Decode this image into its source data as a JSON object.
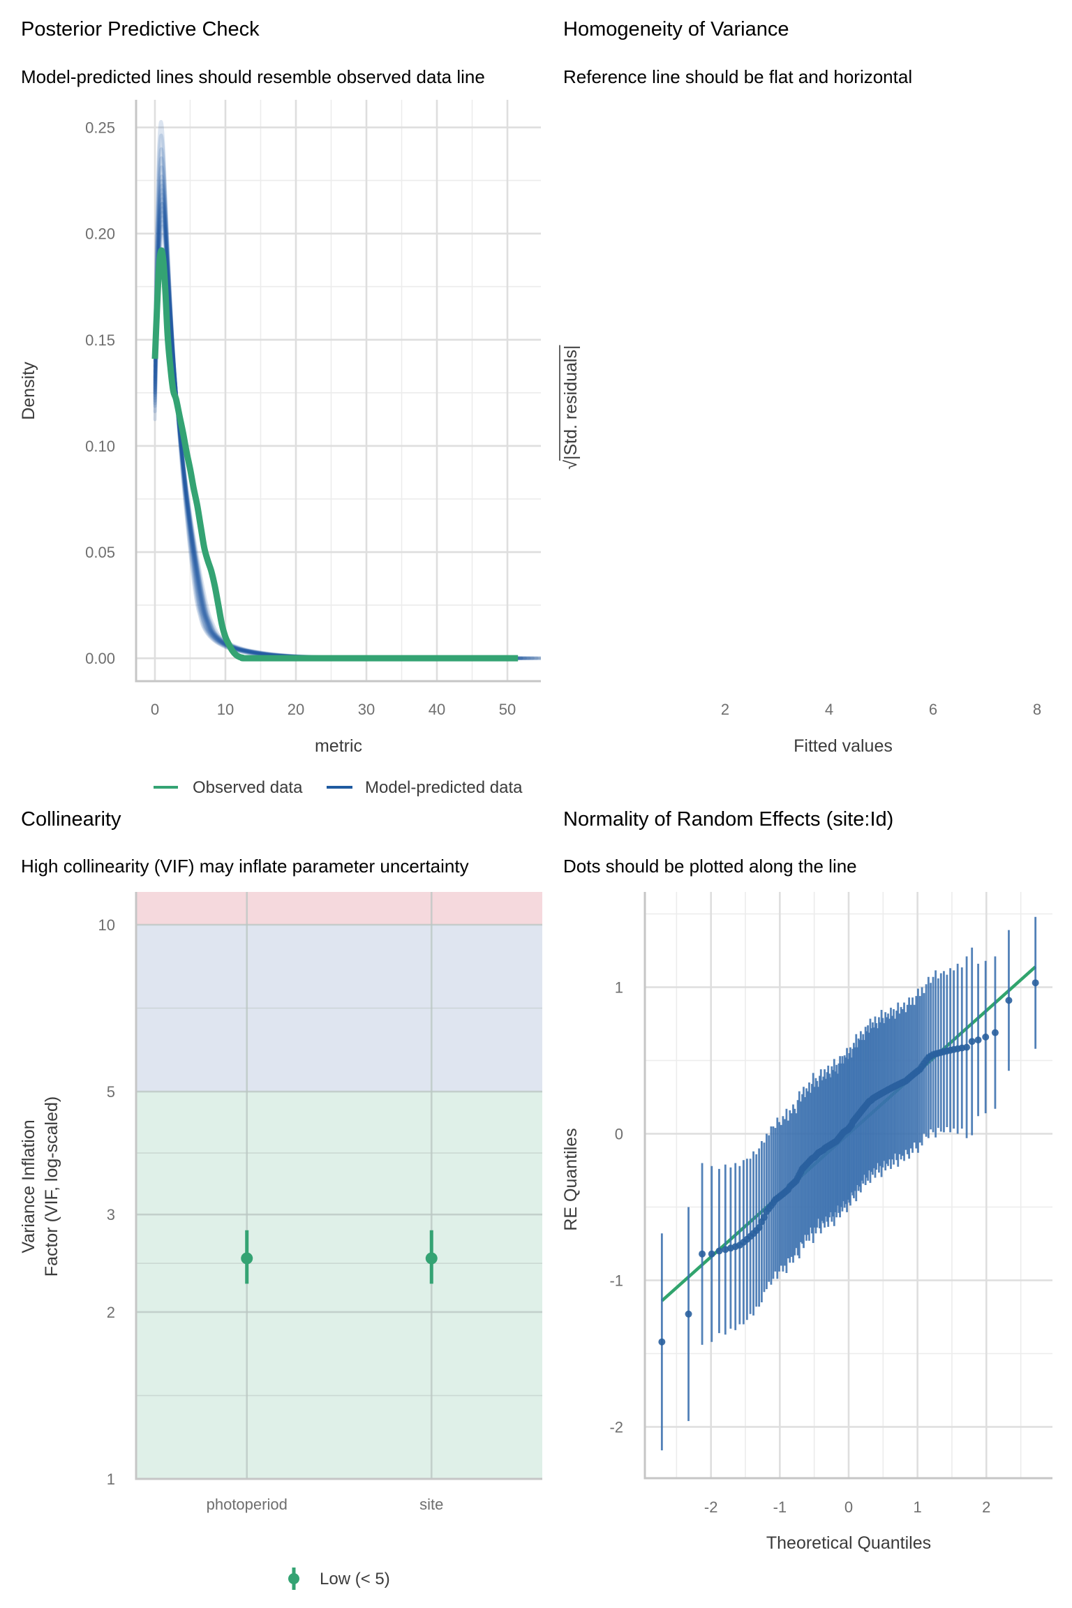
{
  "colors": {
    "observed": "#34a373",
    "predicted": "#1f5aa0",
    "qq_point": "#2a609f",
    "qq_bar": "#3a6fae",
    "reference_line": "#31a46d",
    "vif_low": "#34a373",
    "band_low": "#dff0e8",
    "band_moderate": "#dfe5f0",
    "band_high": "#f5d9dd"
  },
  "chart_data": [
    {
      "type": "line",
      "title": "Posterior Predictive Check",
      "subtitle": "Model-predicted lines should resemble observed data line",
      "xlabel": "metric",
      "ylabel": "Density",
      "xlim": [
        -2.67,
        54.75
      ],
      "ylim": [
        -0.0108,
        0.263
      ],
      "x_ticks": [
        0,
        10,
        20,
        30,
        40,
        50
      ],
      "x_tick_labels": [
        "0",
        "10",
        "20",
        "30",
        "40",
        "50"
      ],
      "x_minor_ticks": [
        5,
        15,
        25,
        35,
        45
      ],
      "y_ticks": [
        0,
        0.05,
        0.1,
        0.15,
        0.2,
        0.25
      ],
      "y_tick_labels": [
        "0.00",
        "0.05",
        "0.10",
        "0.15",
        "0.20",
        "0.25"
      ],
      "y_minor_ticks": [
        0.025,
        0.075,
        0.125,
        0.175,
        0.225
      ],
      "grid": true,
      "legend_position": "bottom",
      "series": [
        {
          "name": "Observed data",
          "x": [
            0,
            0.3,
            0.6,
            0.9,
            1.2,
            1.5,
            1.8,
            2.2,
            2.6,
            3.0,
            3.5,
            4.0,
            4.5,
            5.0,
            5.5,
            6.0,
            6.5,
            7.0,
            7.5,
            8.0,
            8.5,
            9.0,
            9.5,
            10.0,
            10.5,
            11.0,
            11.5,
            12.0,
            12.5,
            13.0,
            20,
            30,
            40,
            51.5
          ],
          "y": [
            0.141,
            0.165,
            0.185,
            0.192,
            0.187,
            0.172,
            0.152,
            0.137,
            0.126,
            0.122,
            0.114,
            0.106,
            0.097,
            0.089,
            0.08,
            0.072,
            0.062,
            0.052,
            0.046,
            0.041,
            0.034,
            0.025,
            0.016,
            0.01,
            0.0065,
            0.0035,
            0.0016,
            0.0006,
            0.0002,
            0.0,
            0.0,
            0.0,
            0.0,
            0.0
          ]
        },
        {
          "name": "Model-predicted data",
          "x": [
            0,
            0.3,
            0.6,
            0.9,
            1.2,
            1.5,
            1.8,
            2.2,
            2.6,
            3.0,
            3.5,
            4.0,
            4.5,
            5.0,
            5.5,
            6.0,
            6.5,
            7.0,
            7.5,
            8.0,
            8.7,
            9.5,
            10.5,
            12,
            14,
            16,
            18,
            20,
            23,
            26,
            30,
            35,
            40,
            45,
            52
          ],
          "y": [
            0.125,
            0.17,
            0.2,
            0.213,
            0.212,
            0.2,
            0.183,
            0.162,
            0.142,
            0.125,
            0.107,
            0.091,
            0.076,
            0.063,
            0.051,
            0.04,
            0.03,
            0.022,
            0.017,
            0.013,
            0.01,
            0.0078,
            0.006,
            0.0042,
            0.0028,
            0.0018,
            0.0012,
            0.0008,
            0.0005,
            0.0003,
            0.0002,
            0.0001,
            0.0001,
            0.0,
            0.0
          ],
          "draw_scales": [
            0.9,
            0.93,
            0.95,
            0.96,
            0.97,
            0.98,
            0.99,
            1.0,
            1.0,
            1.01,
            1.02,
            1.03,
            1.04,
            1.05,
            1.06,
            1.08,
            1.1,
            1.12,
            1.15,
            1.18
          ]
        }
      ]
    },
    {
      "type": "scatter",
      "title": "Homogeneity of Variance",
      "subtitle": "Reference line should be flat and horizontal",
      "xlabel": "Fitted values",
      "ylabel_radical": "√",
      "ylabel": "|Std. residuals|",
      "xlim": [
        0.456,
        8.295
      ],
      "x_ticks": [
        2,
        4,
        6,
        8
      ],
      "x_tick_labels": [
        "2",
        "4",
        "6",
        "8"
      ],
      "grid": false,
      "points": []
    },
    {
      "type": "scatter",
      "title": "Collinearity",
      "subtitle": "High collinearity (VIF) may inflate parameter uncertainty",
      "xlabel": "",
      "ylabel_lines": [
        "Variance Inflation",
        "Factor (VIF, log-scaled)"
      ],
      "y_scale": "log10",
      "ylim": [
        1,
        11.46
      ],
      "y_ticks": [
        1,
        2,
        3,
        5,
        10
      ],
      "y_tick_labels": [
        "1",
        "2",
        "3",
        "5",
        "10"
      ],
      "y_minor_ticks": [
        1.414,
        2.449,
        3.873,
        7.071
      ],
      "categories": [
        "photoperiod",
        "site"
      ],
      "values": [
        2.5,
        2.5
      ],
      "ci_low": [
        2.25,
        2.25
      ],
      "ci_high": [
        2.81,
        2.81
      ],
      "bands": [
        {
          "from": 1,
          "to": 5,
          "level": "low"
        },
        {
          "from": 5,
          "to": 10,
          "level": "moderate"
        },
        {
          "from": 10,
          "to": 11.46,
          "level": "high"
        }
      ],
      "legend": [
        {
          "label": "Low (< 5)"
        }
      ],
      "legend_position": "bottom"
    },
    {
      "type": "scatter",
      "title": "Normality of Random Effects (site:Id)",
      "subtitle": "Dots should be plotted along the line",
      "xlabel": "Theoretical Quantiles",
      "ylabel": "RE Quantiles",
      "xlim": [
        -2.96,
        2.96
      ],
      "ylim": [
        -2.35,
        1.65
      ],
      "x_ticks": [
        -2,
        -1,
        0,
        1,
        2
      ],
      "x_tick_labels": [
        "-2",
        "-1",
        "0",
        "1",
        "2"
      ],
      "x_minor_ticks": [
        -2.5,
        -1.5,
        -0.5,
        0.5,
        1.5,
        2.5
      ],
      "y_ticks": [
        -2,
        -1,
        0,
        1
      ],
      "y_tick_labels": [
        "-2",
        "-1",
        "0",
        "1"
      ],
      "y_minor_ticks": [
        -1.5,
        -0.5,
        0.5,
        1.5
      ],
      "reference_line": {
        "intercept": 0.0,
        "slope": 0.42
      },
      "x": [
        -2.713,
        -2.326,
        -2.128,
        -1.989,
        -1.881,
        -1.791,
        -1.714,
        -1.645,
        -1.583,
        -1.527,
        -1.476,
        -1.428,
        -1.383,
        -1.341,
        -1.301,
        -1.263,
        -1.227,
        -1.192,
        -1.159,
        -1.126,
        -1.095,
        -1.065,
        -1.036,
        -1.008,
        -0.981,
        -0.954,
        -0.928,
        -0.903,
        -0.878,
        -0.854,
        -0.83,
        -0.806,
        -0.783,
        -0.761,
        -0.739,
        -0.717,
        -0.695,
        -0.674,
        -0.654,
        -0.633,
        -0.613,
        -0.593,
        -0.573,
        -0.553,
        -0.534,
        -0.515,
        -0.496,
        -0.477,
        -0.458,
        -0.44,
        -0.421,
        -0.403,
        -0.385,
        -0.367,
        -0.349,
        -0.332,
        -0.314,
        -0.297,
        -0.279,
        -0.262,
        -0.245,
        -0.228,
        -0.21,
        -0.193,
        -0.176,
        -0.16,
        -0.143,
        -0.126,
        -0.109,
        -0.092,
        -0.075,
        -0.059,
        -0.042,
        -0.025,
        -0.008,
        0.008,
        0.025,
        0.042,
        0.059,
        0.075,
        0.092,
        0.109,
        0.126,
        0.143,
        0.16,
        0.176,
        0.193,
        0.21,
        0.228,
        0.245,
        0.262,
        0.279,
        0.297,
        0.314,
        0.332,
        0.349,
        0.367,
        0.385,
        0.403,
        0.421,
        0.44,
        0.458,
        0.477,
        0.496,
        0.515,
        0.534,
        0.553,
        0.573,
        0.593,
        0.613,
        0.633,
        0.654,
        0.674,
        0.695,
        0.717,
        0.739,
        0.761,
        0.783,
        0.806,
        0.83,
        0.854,
        0.878,
        0.903,
        0.928,
        0.954,
        0.981,
        1.008,
        1.036,
        1.065,
        1.095,
        1.126,
        1.159,
        1.192,
        1.227,
        1.263,
        1.301,
        1.341,
        1.383,
        1.428,
        1.476,
        1.527,
        1.583,
        1.645,
        1.714,
        1.791,
        1.881,
        1.989,
        2.128,
        2.326,
        2.713
      ],
      "y": [
        -1.42,
        -1.23,
        -0.82,
        -0.82,
        -0.8,
        -0.79,
        -0.78,
        -0.77,
        -0.76,
        -0.74,
        -0.72,
        -0.7,
        -0.68,
        -0.66,
        -0.64,
        -0.6,
        -0.57,
        -0.53,
        -0.51,
        -0.49,
        -0.47,
        -0.45,
        -0.44,
        -0.43,
        -0.42,
        -0.41,
        -0.4,
        -0.39,
        -0.38,
        -0.36,
        -0.35,
        -0.34,
        -0.33,
        -0.32,
        -0.3,
        -0.28,
        -0.26,
        -0.24,
        -0.23,
        -0.22,
        -0.21,
        -0.2,
        -0.19,
        -0.18,
        -0.17,
        -0.165,
        -0.16,
        -0.15,
        -0.14,
        -0.13,
        -0.125,
        -0.12,
        -0.115,
        -0.11,
        -0.1,
        -0.095,
        -0.09,
        -0.085,
        -0.08,
        -0.075,
        -0.07,
        -0.065,
        -0.06,
        -0.055,
        -0.05,
        -0.04,
        -0.03,
        -0.02,
        -0.01,
        0.0,
        0.01,
        0.015,
        0.02,
        0.025,
        0.03,
        0.04,
        0.05,
        0.06,
        0.08,
        0.09,
        0.1,
        0.11,
        0.12,
        0.13,
        0.14,
        0.15,
        0.16,
        0.17,
        0.18,
        0.19,
        0.2,
        0.21,
        0.22,
        0.225,
        0.23,
        0.24,
        0.245,
        0.25,
        0.255,
        0.26,
        0.265,
        0.27,
        0.275,
        0.28,
        0.285,
        0.29,
        0.295,
        0.3,
        0.305,
        0.31,
        0.315,
        0.32,
        0.325,
        0.33,
        0.335,
        0.34,
        0.345,
        0.35,
        0.355,
        0.36,
        0.37,
        0.38,
        0.39,
        0.4,
        0.41,
        0.42,
        0.43,
        0.44,
        0.46,
        0.48,
        0.5,
        0.52,
        0.53,
        0.54,
        0.545,
        0.55,
        0.555,
        0.56,
        0.565,
        0.57,
        0.575,
        0.58,
        0.585,
        0.59,
        0.63,
        0.64,
        0.66,
        0.69,
        0.91,
        1.03
      ],
      "ci_half_width": [
        0.74,
        0.73,
        0.62,
        0.6,
        0.56,
        0.58,
        0.55,
        0.57,
        0.54,
        0.56,
        0.55,
        0.53,
        0.56,
        0.52,
        0.54,
        0.55,
        0.51,
        0.53,
        0.5,
        0.54,
        0.52,
        0.49,
        0.55,
        0.51,
        0.48,
        0.53,
        0.5,
        0.56,
        0.47,
        0.52,
        0.49,
        0.54,
        0.5,
        0.46,
        0.53,
        0.57,
        0.48,
        0.51,
        0.55,
        0.47,
        0.52,
        0.49,
        0.54,
        0.46,
        0.51,
        0.58,
        0.48,
        0.53,
        0.5,
        0.45,
        0.52,
        0.56,
        0.48,
        0.5,
        0.54,
        0.47,
        0.51,
        0.55,
        0.49,
        0.46,
        0.53,
        0.5,
        0.57,
        0.48,
        0.52,
        0.45,
        0.51,
        0.55,
        0.49,
        0.53,
        0.47,
        0.52,
        0.5,
        0.56,
        0.48,
        0.51,
        0.54,
        0.46,
        0.5,
        0.53,
        0.49,
        0.57,
        0.47,
        0.52,
        0.5,
        0.55,
        0.48,
        0.51,
        0.46,
        0.54,
        0.5,
        0.53,
        0.47,
        0.56,
        0.49,
        0.52,
        0.48,
        0.55,
        0.5,
        0.46,
        0.53,
        0.49,
        0.57,
        0.51,
        0.47,
        0.54,
        0.5,
        0.52,
        0.48,
        0.55,
        0.49,
        0.53,
        0.46,
        0.51,
        0.56,
        0.48,
        0.52,
        0.5,
        0.54,
        0.47,
        0.51,
        0.55,
        0.49,
        0.53,
        0.47,
        0.52,
        0.56,
        0.5,
        0.54,
        0.48,
        0.52,
        0.55,
        0.5,
        0.53,
        0.57,
        0.51,
        0.54,
        0.55,
        0.52,
        0.56,
        0.54,
        0.58,
        0.55,
        0.62,
        0.64,
        0.52,
        0.52,
        0.52,
        0.48,
        0.45
      ]
    }
  ]
}
